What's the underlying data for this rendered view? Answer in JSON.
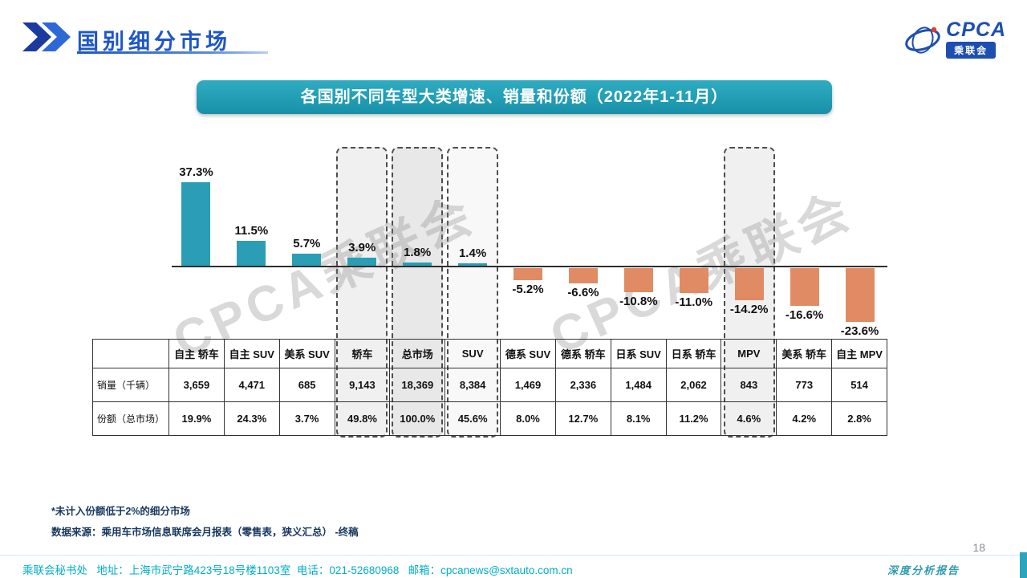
{
  "header": {
    "title": "国别细分市场",
    "logo": {
      "name": "CPCA",
      "subname": "乘联会"
    }
  },
  "banner": {
    "title": "各国别不同车型大类增速、销量和份额（2022年1-11月）"
  },
  "chart_data": {
    "type": "bar",
    "title": "各国别不同车型大类增速、销量和份额（2022年1-11月）",
    "unit": "%",
    "categories": [
      "自主 轿车",
      "自主 SUV",
      "美系 SUV",
      "轿车",
      "总市场",
      "SUV",
      "德系 SUV",
      "德系 轿车",
      "日系 SUV",
      "日系 轿车",
      "MPV",
      "美系 轿车",
      "自主 MPV"
    ],
    "values": [
      37.3,
      11.5,
      5.7,
      3.9,
      1.8,
      1.4,
      -5.2,
      -6.6,
      -10.8,
      -11.0,
      -14.2,
      -16.6,
      -23.6
    ],
    "labels": [
      "37.3%",
      "11.5%",
      "5.7%",
      "3.9%",
      "1.8%",
      "1.4%",
      "-5.2%",
      "-6.6%",
      "-10.8%",
      "-11.0%",
      "-14.2%",
      "-16.6%",
      "-23.6%"
    ],
    "positive_color": "#2B9EB5",
    "negative_color": "#E08B63",
    "ylim": [
      -30,
      45
    ],
    "grid": false,
    "legend": "none",
    "highlights": [
      {
        "index": 3,
        "fill": 0.1
      },
      {
        "index": 4,
        "fill": 0.16
      },
      {
        "index": 5,
        "fill": 0.05
      },
      {
        "index": 10,
        "fill": 0.1
      }
    ]
  },
  "table": {
    "corner": "",
    "rows": [
      {
        "label": "销量（千辆）",
        "values": [
          "3,659",
          "4,471",
          "685",
          "9,143",
          "18,369",
          "8,384",
          "1,469",
          "2,336",
          "1,484",
          "2,062",
          "843",
          "773",
          "514"
        ]
      },
      {
        "label": "份额（总市场）",
        "values": [
          "19.9%",
          "24.3%",
          "3.7%",
          "49.8%",
          "100.0%",
          "45.6%",
          "8.0%",
          "12.7%",
          "8.1%",
          "11.2%",
          "4.6%",
          "4.2%",
          "2.8%"
        ]
      }
    ]
  },
  "notes": {
    "line1": "*未计入份额低于2%的细分市场",
    "line2": "数据来源：乘用车市场信息联席会月报表（零售表，狭义汇总） -终稿"
  },
  "footer": {
    "contact": "乘联会秘书处   地址：上海市武宁路423号18号楼1103室  电话：021-52680968   邮箱：cpcanews@sxtauto.com.cn",
    "report_label": "深度分析报告",
    "page_number": "18"
  },
  "watermark": "CPCA乘联会"
}
